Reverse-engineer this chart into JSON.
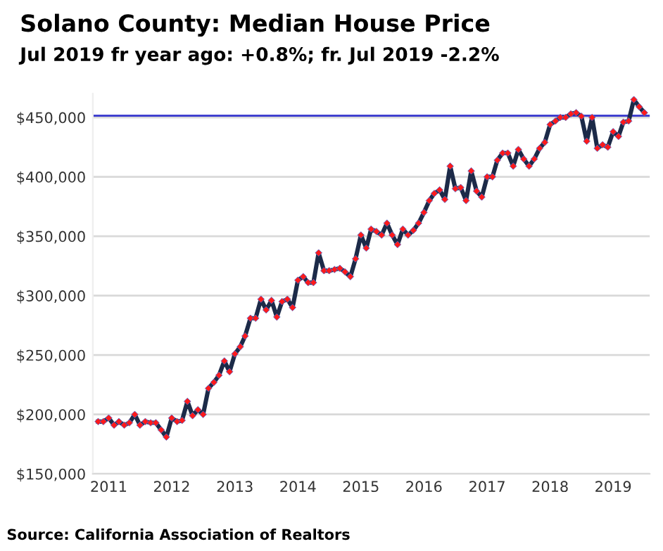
{
  "chart_data": {
    "type": "line",
    "title": "Solano County: Median House Price",
    "subtitle": "Jul 2019 fr year ago: +0.8%; fr. Jul 2019 -2.2%",
    "annotations": [
      "Source: California Association of Realtors"
    ],
    "x": [
      "2010-11",
      "2010-12",
      "2011-01",
      "2011-02",
      "2011-03",
      "2011-04",
      "2011-05",
      "2011-06",
      "2011-07",
      "2011-08",
      "2011-09",
      "2011-10",
      "2011-11",
      "2011-12",
      "2012-01",
      "2012-02",
      "2012-03",
      "2012-04",
      "2012-05",
      "2012-06",
      "2012-07",
      "2012-08",
      "2012-09",
      "2012-10",
      "2012-11",
      "2012-12",
      "2013-01",
      "2013-02",
      "2013-03",
      "2013-04",
      "2013-05",
      "2013-06",
      "2013-07",
      "2013-08",
      "2013-09",
      "2013-10",
      "2013-11",
      "2013-12",
      "2014-01",
      "2014-02",
      "2014-03",
      "2014-04",
      "2014-05",
      "2014-06",
      "2014-07",
      "2014-08",
      "2014-09",
      "2014-10",
      "2014-11",
      "2014-12",
      "2015-01",
      "2015-02",
      "2015-03",
      "2015-04",
      "2015-05",
      "2015-06",
      "2015-07",
      "2015-08",
      "2015-09",
      "2015-10",
      "2015-11",
      "2015-12",
      "2016-01",
      "2016-02",
      "2016-03",
      "2016-04",
      "2016-05",
      "2016-06",
      "2016-07",
      "2016-08",
      "2016-09",
      "2016-10",
      "2016-11",
      "2016-12",
      "2017-01",
      "2017-02",
      "2017-03",
      "2017-04",
      "2017-05",
      "2017-06",
      "2017-07",
      "2017-08",
      "2017-09",
      "2017-10",
      "2017-11",
      "2017-12",
      "2018-01",
      "2018-02",
      "2018-03",
      "2018-04",
      "2018-05",
      "2018-06",
      "2018-07",
      "2018-08",
      "2018-09",
      "2018-10",
      "2018-11",
      "2018-12",
      "2019-01",
      "2019-02",
      "2019-03",
      "2019-04",
      "2019-05",
      "2019-06",
      "2019-07"
    ],
    "series": [
      {
        "color": "#1c2a48",
        "values": [
          194000,
          194000,
          197000,
          191000,
          194000,
          191000,
          193000,
          200000,
          191000,
          194000,
          193000,
          193000,
          187000,
          181000,
          197000,
          194000,
          195000,
          211000,
          199000,
          204000,
          200000,
          222000,
          227000,
          233000,
          245000,
          236000,
          251000,
          257000,
          266000,
          281000,
          281000,
          297000,
          288000,
          296000,
          282000,
          295000,
          297000,
          290000,
          313000,
          316000,
          311000,
          311000,
          336000,
          321000,
          321000,
          322000,
          323000,
          320000,
          316000,
          331000,
          351000,
          340000,
          356000,
          354000,
          351000,
          361000,
          351000,
          343000,
          356000,
          351000,
          355000,
          361000,
          370000,
          380000,
          386000,
          389000,
          381000,
          409000,
          390000,
          391000,
          380000,
          405000,
          388000,
          383000,
          400000,
          400000,
          414000,
          420000,
          420000,
          409000,
          423000,
          415000,
          409000,
          415000,
          424000,
          429000,
          444000,
          447000,
          450000,
          450000,
          453000,
          454000,
          451000,
          430000,
          450000,
          424000,
          427000,
          425000,
          438000,
          434000,
          446000,
          447000,
          465000,
          459000,
          454000
        ],
        "colors": [
          "#ff1a1a",
          "#ff1a1a",
          "#ff1a1a",
          "#ff1a1a",
          "#ff1a1a",
          "#ff1a1a",
          "#ff1a1a",
          "#ff1a1a",
          "#ff1a1a",
          "#ff1a1a",
          "#ff1a1a",
          "#ff1a1a",
          "#ff1a1a",
          "#ff1a1a",
          "#ff1a1a",
          "#ff1a1a",
          "#ff1a1a",
          "#ff1a1a",
          "#ff1a1a",
          "#ff1a1a",
          "#ff1a1a",
          "#ff1a1a",
          "#ff1a1a",
          "#ff1a1a",
          "#ff1a1a",
          "#ff1a1a",
          "#ff1a1a",
          "#ff1a1a",
          "#ff1a1a",
          "#ff1a1a",
          "#ff1a1a",
          "#ff1a1a",
          "#ff1a1a",
          "#ff1a1a",
          "#ff1a1a",
          "#ff1a1a",
          "#ff1a1a",
          "#ff1a1a",
          "#ff1a1a",
          "#ff1a1a",
          "#ff1a1a",
          "#ff1a1a",
          "#ff1a1a",
          "#ff1a1a",
          "#ff1a1a",
          "#ff1a1a",
          "#ff1a1a",
          "#ff1a1a",
          "#ff1a1a",
          "#ff1a1a",
          "#ff1a1a",
          "#ff1a1a",
          "#ff1a1a",
          "#ff1a1a",
          "#ff1a1a",
          "#ff1a1a",
          "#ff1a1a",
          "#ff1a1a",
          "#ff1a1a",
          "#ff1a1a",
          "#ff1a1a",
          "#ff1a1a",
          "#ff1a1a",
          "#ff1a1a",
          "#ff1a1a",
          "#ff1a1a",
          "#ff1a1a",
          "#ff1a1a",
          "#ff1a1a",
          "#ff1a1a",
          "#ff1a1a",
          "#ff1a1a",
          "#ff1a1a",
          "#ff1a1a",
          "#ff1a1a",
          "#ff1a1a",
          "#ff1a1a",
          "#ff1a1a",
          "#ff1a1a",
          "#ff1a1a",
          "#ff1a1a",
          "#ff1a1a",
          "#ff1a1a",
          "#ff1a1a",
          "#ff1a1a",
          "#ff1a1a",
          "#ff1a1a",
          "#ff1a1a",
          "#ff1a1a",
          "#ff1a1a",
          "#ff1a1a",
          "#ff1a1a",
          "#ff1a1a",
          "#ff1a1a",
          "#ff1a1a",
          "#ff1a1a",
          "#ff1a1a",
          "#ff1a1a",
          "#ff1a1a",
          "#ff1a1a",
          "#ff1a1a",
          "#ff1a1a",
          "#ff1a1a",
          "#ff1a1a",
          "#ff1a1a"
        ]
      }
    ],
    "marker": "diamond",
    "ref_lines": [
      {
        "axis": "y",
        "value": 451500,
        "color": "#3333cc"
      }
    ],
    "xlim": [
      "2010-10",
      "2019-08"
    ],
    "xticks": [
      {
        "value": "2011-01",
        "label": "2011"
      },
      {
        "value": "2012-01",
        "label": "2012"
      },
      {
        "value": "2013-01",
        "label": "2013"
      },
      {
        "value": "2014-01",
        "label": "2014"
      },
      {
        "value": "2015-01",
        "label": "2015"
      },
      {
        "value": "2016-01",
        "label": "2016"
      },
      {
        "value": "2017-01",
        "label": "2017"
      },
      {
        "value": "2018-01",
        "label": "2018"
      },
      {
        "value": "2019-01",
        "label": "2019"
      }
    ],
    "ylim": [
      150000,
      470000
    ],
    "yticks": [
      {
        "value": 150000,
        "label": "$150,000"
      },
      {
        "value": 200000,
        "label": "$200,000"
      },
      {
        "value": 250000,
        "label": "$250,000"
      },
      {
        "value": 300000,
        "label": "$300,000"
      },
      {
        "value": 350000,
        "label": "$350,000"
      },
      {
        "value": 400000,
        "label": "$400,000"
      },
      {
        "value": 450000,
        "label": "$450,000"
      }
    ],
    "grid": "y",
    "legend": false
  }
}
